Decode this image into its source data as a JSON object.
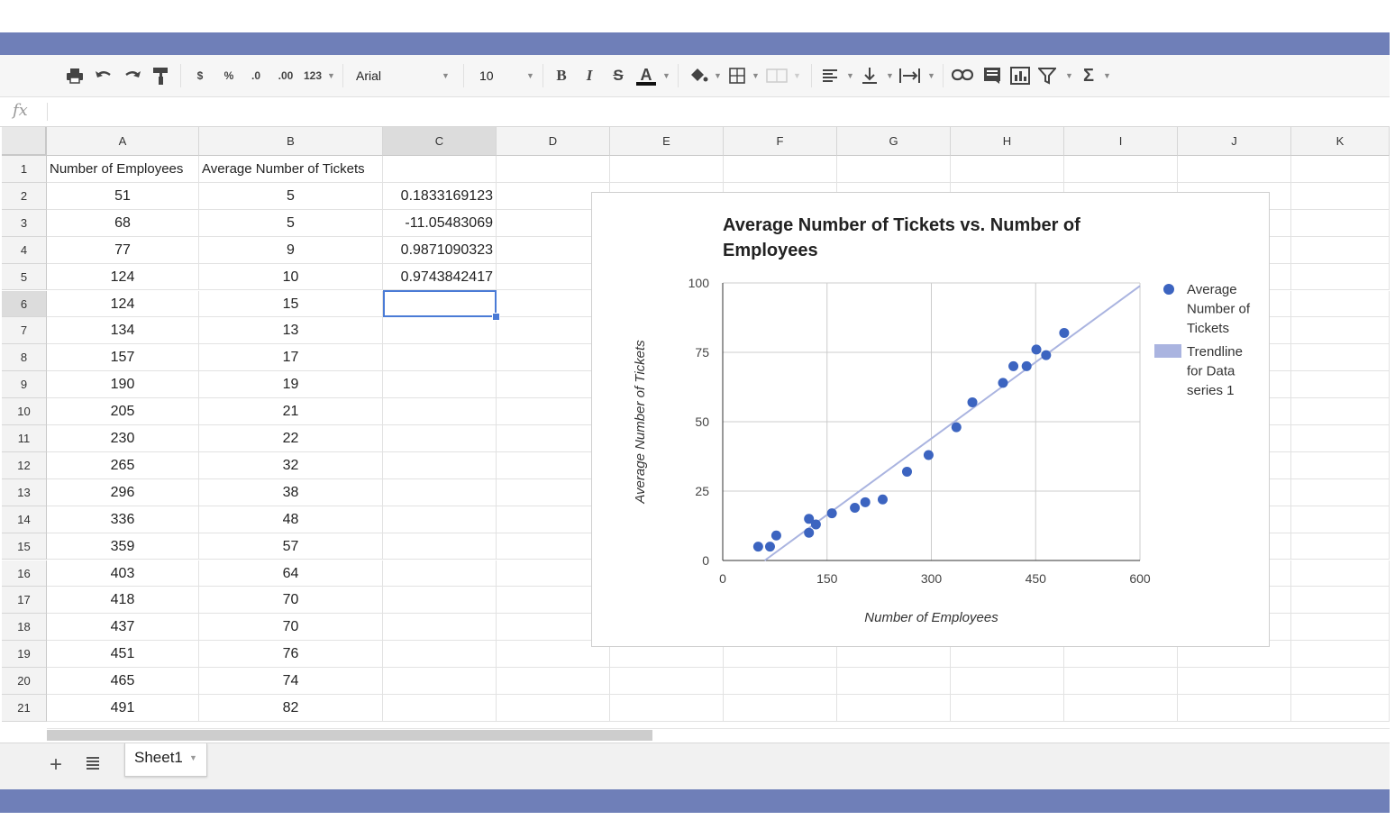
{
  "toolbar": {
    "currency": "$",
    "percent": "%",
    "decrease_decimal": ".0",
    "increase_decimal": ".00",
    "more_formats": "123",
    "font": "Arial",
    "font_size": "10",
    "bold": "B",
    "italic": "I",
    "strike": "S",
    "text_color": "A",
    "sum": "Σ"
  },
  "formula_bar": {
    "fx": "fx",
    "value": ""
  },
  "columns": [
    "A",
    "B",
    "C",
    "D",
    "E",
    "F",
    "G",
    "H",
    "I",
    "J",
    "K"
  ],
  "selected_column": "C",
  "selected_row": "6",
  "rows": [
    "1",
    "2",
    "3",
    "4",
    "5",
    "6",
    "7",
    "8",
    "9",
    "10",
    "11",
    "12",
    "13",
    "14",
    "15",
    "16",
    "17",
    "18",
    "19",
    "20",
    "21"
  ],
  "cells": {
    "A": [
      "Number of Employees",
      "51",
      "68",
      "77",
      "124",
      "124",
      "134",
      "157",
      "190",
      "205",
      "230",
      "265",
      "296",
      "336",
      "359",
      "403",
      "418",
      "437",
      "451",
      "465",
      "491"
    ],
    "B": [
      "Average Number of Tickets",
      "5",
      "5",
      "9",
      "10",
      "15",
      "13",
      "17",
      "19",
      "21",
      "22",
      "32",
      "38",
      "48",
      "57",
      "64",
      "70",
      "70",
      "76",
      "74",
      "82"
    ],
    "C": [
      "",
      "0.1833169123",
      "-11.05483069",
      "0.9871090323",
      "0.9743842417",
      "",
      "",
      "",
      "",
      "",
      "",
      "",
      "",
      "",
      "",
      "",
      "",
      "",
      "",
      "",
      ""
    ]
  },
  "chart_data": {
    "type": "scatter",
    "title": "Average Number of Tickets vs. Number of Employees",
    "xlabel": "Number of Employees",
    "ylabel": "Average Number of Tickets",
    "xlim": [
      0,
      600
    ],
    "ylim": [
      0,
      100
    ],
    "xticks": [
      "0",
      "150",
      "300",
      "450",
      "600"
    ],
    "yticks": [
      "0",
      "25",
      "50",
      "75",
      "100"
    ],
    "grid": true,
    "legend_position": "right",
    "series": [
      {
        "name": "Average Number of Tickets",
        "color": "#3c64c0",
        "x": [
          51,
          68,
          77,
          124,
          124,
          134,
          157,
          190,
          205,
          230,
          265,
          296,
          336,
          359,
          403,
          418,
          437,
          451,
          465,
          491
        ],
        "y": [
          5,
          5,
          9,
          10,
          15,
          13,
          17,
          19,
          21,
          22,
          32,
          38,
          48,
          57,
          64,
          70,
          70,
          76,
          74,
          82
        ]
      }
    ],
    "trendline": {
      "name": "Trendline for Data series 1",
      "color": "#aab4e0",
      "slope": 0.1833169123,
      "intercept": -11.05483069
    }
  },
  "sheet_tabs": {
    "active": "Sheet1",
    "add": "+"
  }
}
